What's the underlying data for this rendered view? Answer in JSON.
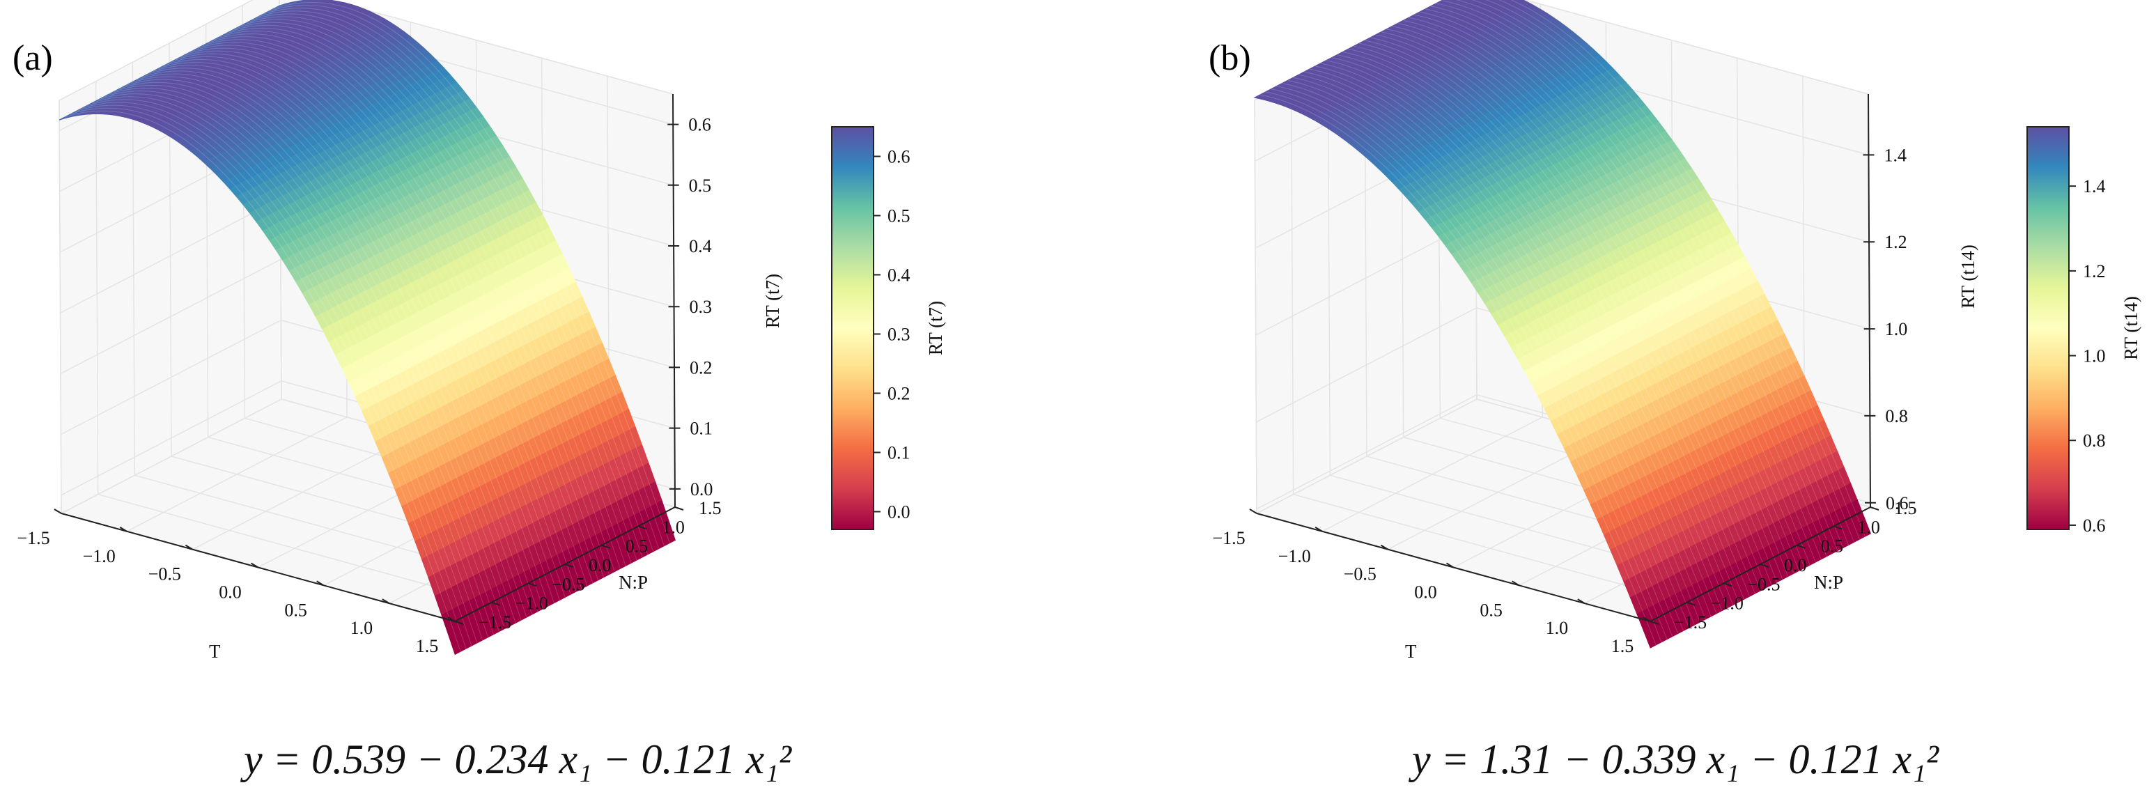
{
  "chart_data": [
    {
      "type": "surface",
      "panel_label": "(a)",
      "xlabel": "T",
      "ylabel": "N:P",
      "zlabel": "RT (t7)",
      "colorbar_label": "RT (t7)",
      "colormap": "Spectral",
      "x_ticks": [
        "−1.5",
        "−1.0",
        "−0.5",
        "0.0",
        "0.5",
        "1.0",
        "1.5"
      ],
      "y_ticks": [
        "−1.5",
        "−1.0",
        "−0.5",
        "0.0",
        "0.5",
        "1.0",
        "1.5"
      ],
      "z_ticks": [
        "0.0",
        "0.1",
        "0.2",
        "0.3",
        "0.4",
        "0.5",
        "0.6"
      ],
      "colorbar_ticks": [
        "0.0",
        "0.1",
        "0.2",
        "0.3",
        "0.4",
        "0.5",
        "0.6"
      ],
      "xlim": [
        -1.5,
        1.5
      ],
      "ylim": [
        -1.5,
        1.5
      ],
      "zlim": [
        -0.03,
        0.65
      ],
      "model": {
        "intercept": 0.539,
        "b1": -0.234,
        "b11": -0.121
      },
      "equation": "y = 0.539 − 0.234 x₁ − 0.121 x₁²"
    },
    {
      "type": "surface",
      "panel_label": "(b)",
      "xlabel": "T",
      "ylabel": "N:P",
      "zlabel": "RT (t14)",
      "colorbar_label": "RT (t14)",
      "colormap": "Spectral",
      "x_ticks": [
        "−1.5",
        "−1.0",
        "−0.5",
        "0.0",
        "0.5",
        "1.0",
        "1.5"
      ],
      "y_ticks": [
        "−1.5",
        "−1.0",
        "−0.5",
        "0.0",
        "0.5",
        "1.0",
        "1.5"
      ],
      "z_ticks": [
        "0.6",
        "0.8",
        "1.0",
        "1.2",
        "1.4"
      ],
      "colorbar_ticks": [
        "0.6",
        "0.8",
        "1.0",
        "1.2",
        "1.4"
      ],
      "xlim": [
        -1.5,
        1.5
      ],
      "ylim": [
        -1.5,
        1.5
      ],
      "zlim": [
        0.59,
        1.54
      ],
      "model": {
        "intercept": 1.31,
        "b1": -0.339,
        "b11": -0.121
      },
      "equation": "y = 1.31 − 0.339 x₁ − 0.121 x₁²"
    }
  ]
}
